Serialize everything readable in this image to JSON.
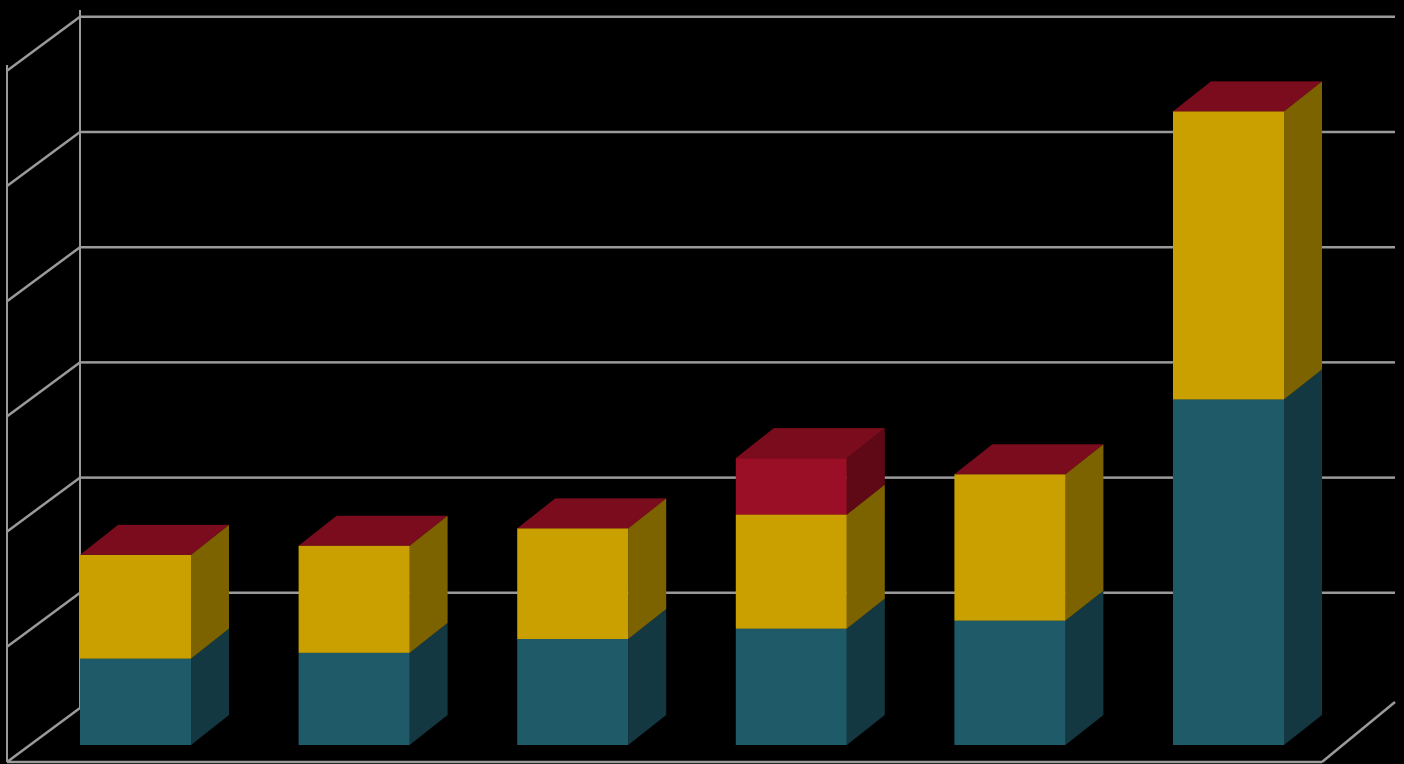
{
  "chart_data": {
    "type": "bar",
    "stacked": true,
    "three_d": true,
    "categories": [
      "",
      "",
      "",
      "",
      "",
      ""
    ],
    "ylim": [
      0,
      6
    ],
    "grid": true,
    "legend": "none",
    "series": [
      {
        "values": [
          0.75,
          0.8,
          0.92,
          1.01,
          1.08,
          3.0
        ],
        "color": "#1f5a69"
      },
      {
        "values": [
          0.9,
          0.93,
          0.96,
          0.99,
          1.27,
          2.5
        ],
        "color": "#c9a000"
      },
      {
        "values": [
          0.0,
          0.0,
          0.0,
          0.49,
          0.0,
          0.0
        ],
        "color": "#9a0f25"
      }
    ]
  }
}
